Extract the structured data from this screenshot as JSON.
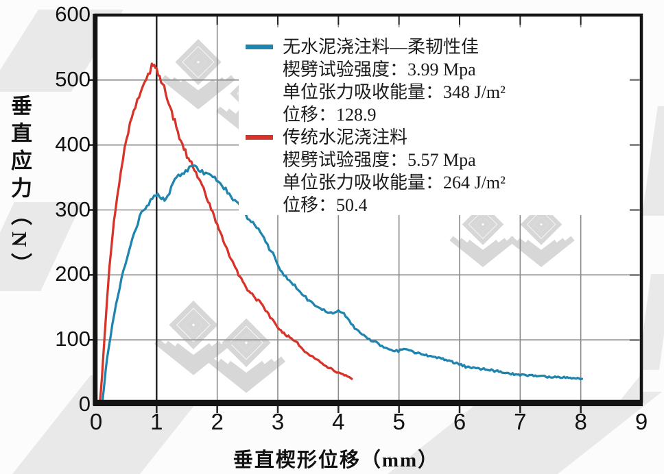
{
  "chart_data": {
    "type": "line",
    "title": "",
    "xlabel": "垂直楔形位移（mm）",
    "ylabel": "垂直应力（N）",
    "xlim": [
      0,
      9
    ],
    "ylim": [
      0,
      600
    ],
    "x_ticks": [
      0,
      1,
      2,
      3,
      4,
      5,
      6,
      7,
      8,
      9
    ],
    "y_ticks": [
      0,
      100,
      200,
      300,
      400,
      500,
      600
    ],
    "grid": true,
    "legend_position": "inset upper-right, opaque white box",
    "marker_line": "dark vertical reference line at x=1",
    "series": [
      {
        "name": "无水泥浇注料—柔韧性佳",
        "color": "#1f85ae",
        "details": [
          "楔劈试验强度：3.99 Mpa",
          "单位张力吸收能量：348 J/m²",
          "位移：128.9"
        ],
        "points": [
          [
            0.1,
            0
          ],
          [
            0.14,
            35
          ],
          [
            0.18,
            70
          ],
          [
            0.24,
            105
          ],
          [
            0.3,
            140
          ],
          [
            0.36,
            168
          ],
          [
            0.42,
            192
          ],
          [
            0.48,
            215
          ],
          [
            0.54,
            237
          ],
          [
            0.6,
            256
          ],
          [
            0.66,
            272
          ],
          [
            0.72,
            288
          ],
          [
            0.78,
            300
          ],
          [
            0.84,
            308
          ],
          [
            0.9,
            315
          ],
          [
            0.96,
            320
          ],
          [
            1.02,
            322
          ],
          [
            1.08,
            319
          ],
          [
            1.13,
            315
          ],
          [
            1.18,
            320
          ],
          [
            1.24,
            333
          ],
          [
            1.3,
            345
          ],
          [
            1.36,
            352
          ],
          [
            1.42,
            357
          ],
          [
            1.48,
            360
          ],
          [
            1.54,
            364
          ],
          [
            1.6,
            366
          ],
          [
            1.66,
            363
          ],
          [
            1.72,
            360
          ],
          [
            1.78,
            358
          ],
          [
            1.84,
            356
          ],
          [
            1.9,
            352
          ],
          [
            1.96,
            347
          ],
          [
            2.02,
            343
          ],
          [
            2.08,
            337
          ],
          [
            2.14,
            330
          ],
          [
            2.2,
            324
          ],
          [
            2.26,
            318
          ],
          [
            2.32,
            313
          ],
          [
            2.38,
            308
          ],
          [
            2.44,
            298
          ],
          [
            2.5,
            289
          ],
          [
            2.56,
            283
          ],
          [
            2.62,
            277
          ],
          [
            2.68,
            270
          ],
          [
            2.74,
            261
          ],
          [
            2.8,
            251
          ],
          [
            2.86,
            241
          ],
          [
            2.92,
            231
          ],
          [
            2.98,
            218
          ],
          [
            3.04,
            208
          ],
          [
            3.1,
            201
          ],
          [
            3.16,
            195
          ],
          [
            3.22,
            189
          ],
          [
            3.28,
            183
          ],
          [
            3.34,
            177
          ],
          [
            3.4,
            171
          ],
          [
            3.46,
            165
          ],
          [
            3.52,
            160
          ],
          [
            3.58,
            155
          ],
          [
            3.64,
            151
          ],
          [
            3.7,
            148
          ],
          [
            3.76,
            145
          ],
          [
            3.82,
            143
          ],
          [
            3.88,
            141
          ],
          [
            3.94,
            142
          ],
          [
            4.0,
            146
          ],
          [
            4.06,
            143
          ],
          [
            4.12,
            137
          ],
          [
            4.18,
            130
          ],
          [
            4.24,
            122
          ],
          [
            4.3,
            116
          ],
          [
            4.36,
            111
          ],
          [
            4.42,
            107
          ],
          [
            4.48,
            103
          ],
          [
            4.54,
            100
          ],
          [
            4.6,
            97
          ],
          [
            4.66,
            93
          ],
          [
            4.72,
            90
          ],
          [
            4.78,
            87
          ],
          [
            4.84,
            85
          ],
          [
            4.9,
            84
          ],
          [
            4.96,
            83
          ],
          [
            5.02,
            84
          ],
          [
            5.08,
            86
          ],
          [
            5.14,
            85
          ],
          [
            5.2,
            83
          ],
          [
            5.26,
            81
          ],
          [
            5.32,
            79
          ],
          [
            5.4,
            77
          ],
          [
            5.5,
            75
          ],
          [
            5.6,
            74
          ],
          [
            5.7,
            72
          ],
          [
            5.8,
            69
          ],
          [
            5.9,
            65
          ],
          [
            6.0,
            62
          ],
          [
            6.1,
            59
          ],
          [
            6.2,
            57
          ],
          [
            6.3,
            56
          ],
          [
            6.4,
            55
          ],
          [
            6.5,
            54
          ],
          [
            6.6,
            52
          ],
          [
            6.7,
            50
          ],
          [
            6.8,
            48
          ],
          [
            6.9,
            47
          ],
          [
            7.0,
            46
          ],
          [
            7.1,
            45
          ],
          [
            7.2,
            45
          ],
          [
            7.3,
            44
          ],
          [
            7.4,
            44
          ],
          [
            7.5,
            43
          ],
          [
            7.6,
            43
          ],
          [
            7.7,
            42
          ],
          [
            7.8,
            42
          ],
          [
            7.9,
            41
          ],
          [
            8.02,
            40
          ]
        ]
      },
      {
        "name": "传统水泥浇注料",
        "color": "#d6342a",
        "details": [
          "楔劈试验强度：5.57 Mpa",
          "单位张力吸收能量：264 J/m²",
          "位移：50.4"
        ],
        "points": [
          [
            0.06,
            0
          ],
          [
            0.1,
            45
          ],
          [
            0.14,
            105
          ],
          [
            0.18,
            160
          ],
          [
            0.22,
            210
          ],
          [
            0.27,
            260
          ],
          [
            0.32,
            300
          ],
          [
            0.38,
            340
          ],
          [
            0.44,
            375
          ],
          [
            0.5,
            408
          ],
          [
            0.56,
            432
          ],
          [
            0.62,
            452
          ],
          [
            0.68,
            470
          ],
          [
            0.74,
            485
          ],
          [
            0.8,
            498
          ],
          [
            0.86,
            510
          ],
          [
            0.92,
            520
          ],
          [
            0.96,
            525
          ],
          [
            1.0,
            518
          ],
          [
            1.05,
            507
          ],
          [
            1.1,
            494
          ],
          [
            1.15,
            480
          ],
          [
            1.2,
            465
          ],
          [
            1.25,
            450
          ],
          [
            1.3,
            435
          ],
          [
            1.35,
            420
          ],
          [
            1.4,
            406
          ],
          [
            1.45,
            395
          ],
          [
            1.5,
            384
          ],
          [
            1.55,
            375
          ],
          [
            1.6,
            366
          ],
          [
            1.65,
            357
          ],
          [
            1.7,
            348
          ],
          [
            1.75,
            338
          ],
          [
            1.8,
            326
          ],
          [
            1.85,
            314
          ],
          [
            1.9,
            302
          ],
          [
            1.95,
            290
          ],
          [
            2.0,
            278
          ],
          [
            2.05,
            265
          ],
          [
            2.1,
            252
          ],
          [
            2.15,
            242
          ],
          [
            2.2,
            232
          ],
          [
            2.25,
            222
          ],
          [
            2.3,
            211
          ],
          [
            2.35,
            202
          ],
          [
            2.4,
            194
          ],
          [
            2.45,
            186
          ],
          [
            2.5,
            178
          ],
          [
            2.55,
            172
          ],
          [
            2.6,
            168
          ],
          [
            2.65,
            162
          ],
          [
            2.7,
            158
          ],
          [
            2.75,
            152
          ],
          [
            2.8,
            146
          ],
          [
            2.85,
            139
          ],
          [
            2.9,
            132
          ],
          [
            2.95,
            126
          ],
          [
            3.0,
            120
          ],
          [
            3.05,
            115
          ],
          [
            3.1,
            110
          ],
          [
            3.15,
            106
          ],
          [
            3.2,
            103
          ],
          [
            3.25,
            100
          ],
          [
            3.3,
            97
          ],
          [
            3.35,
            92
          ],
          [
            3.4,
            87
          ],
          [
            3.45,
            82
          ],
          [
            3.5,
            78
          ],
          [
            3.55,
            75
          ],
          [
            3.6,
            73
          ],
          [
            3.65,
            70
          ],
          [
            3.7,
            66
          ],
          [
            3.75,
            63
          ],
          [
            3.8,
            60
          ],
          [
            3.85,
            57
          ],
          [
            3.9,
            54
          ],
          [
            3.95,
            51
          ],
          [
            4.0,
            49
          ],
          [
            4.05,
            47
          ],
          [
            4.1,
            45
          ],
          [
            4.15,
            43
          ],
          [
            4.2,
            41
          ],
          [
            4.22,
            40
          ]
        ]
      }
    ]
  }
}
